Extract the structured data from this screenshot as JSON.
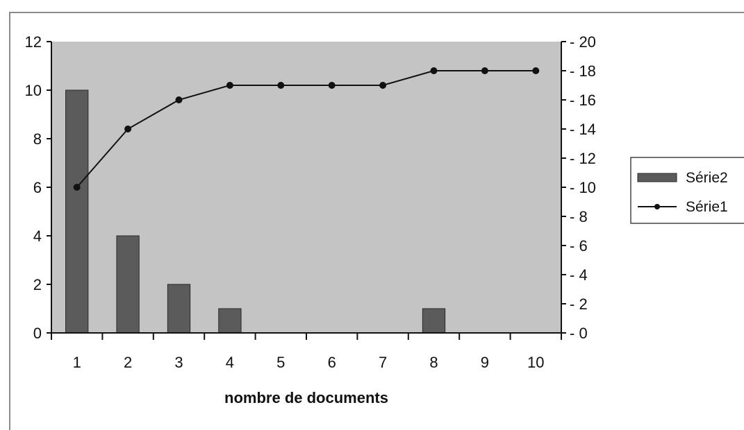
{
  "colors": {
    "plot_bg": "#c4c4c4",
    "bar_fill": "#5b5b5b",
    "bar_stroke": "#2a2a2a",
    "line": "#111111",
    "frame": "#8a8a8a"
  },
  "chart_data": {
    "type": "bar",
    "categories": [
      "1",
      "2",
      "3",
      "4",
      "5",
      "6",
      "7",
      "8",
      "9",
      "10"
    ],
    "xlabel": "nombre de documents",
    "ylabel": "",
    "ylim": [
      0,
      12
    ],
    "y_ticks": [
      "0",
      "2",
      "4",
      "6",
      "8",
      "10",
      "12"
    ],
    "y2lim": [
      0,
      20
    ],
    "y2_ticks": [
      "0",
      "2",
      "4",
      "6",
      "8",
      "10",
      "12",
      "14",
      "16",
      "18",
      "20"
    ],
    "grid": false,
    "legend_position": "right",
    "series": [
      {
        "name": "Série2",
        "type": "bar",
        "axis": "left",
        "values": [
          10,
          4,
          2,
          1,
          0,
          0,
          0,
          1,
          0,
          0
        ]
      },
      {
        "name": "Série1",
        "type": "line",
        "axis": "right",
        "values": [
          10,
          14,
          16,
          17,
          17,
          17,
          17,
          18,
          18,
          18
        ]
      }
    ]
  }
}
